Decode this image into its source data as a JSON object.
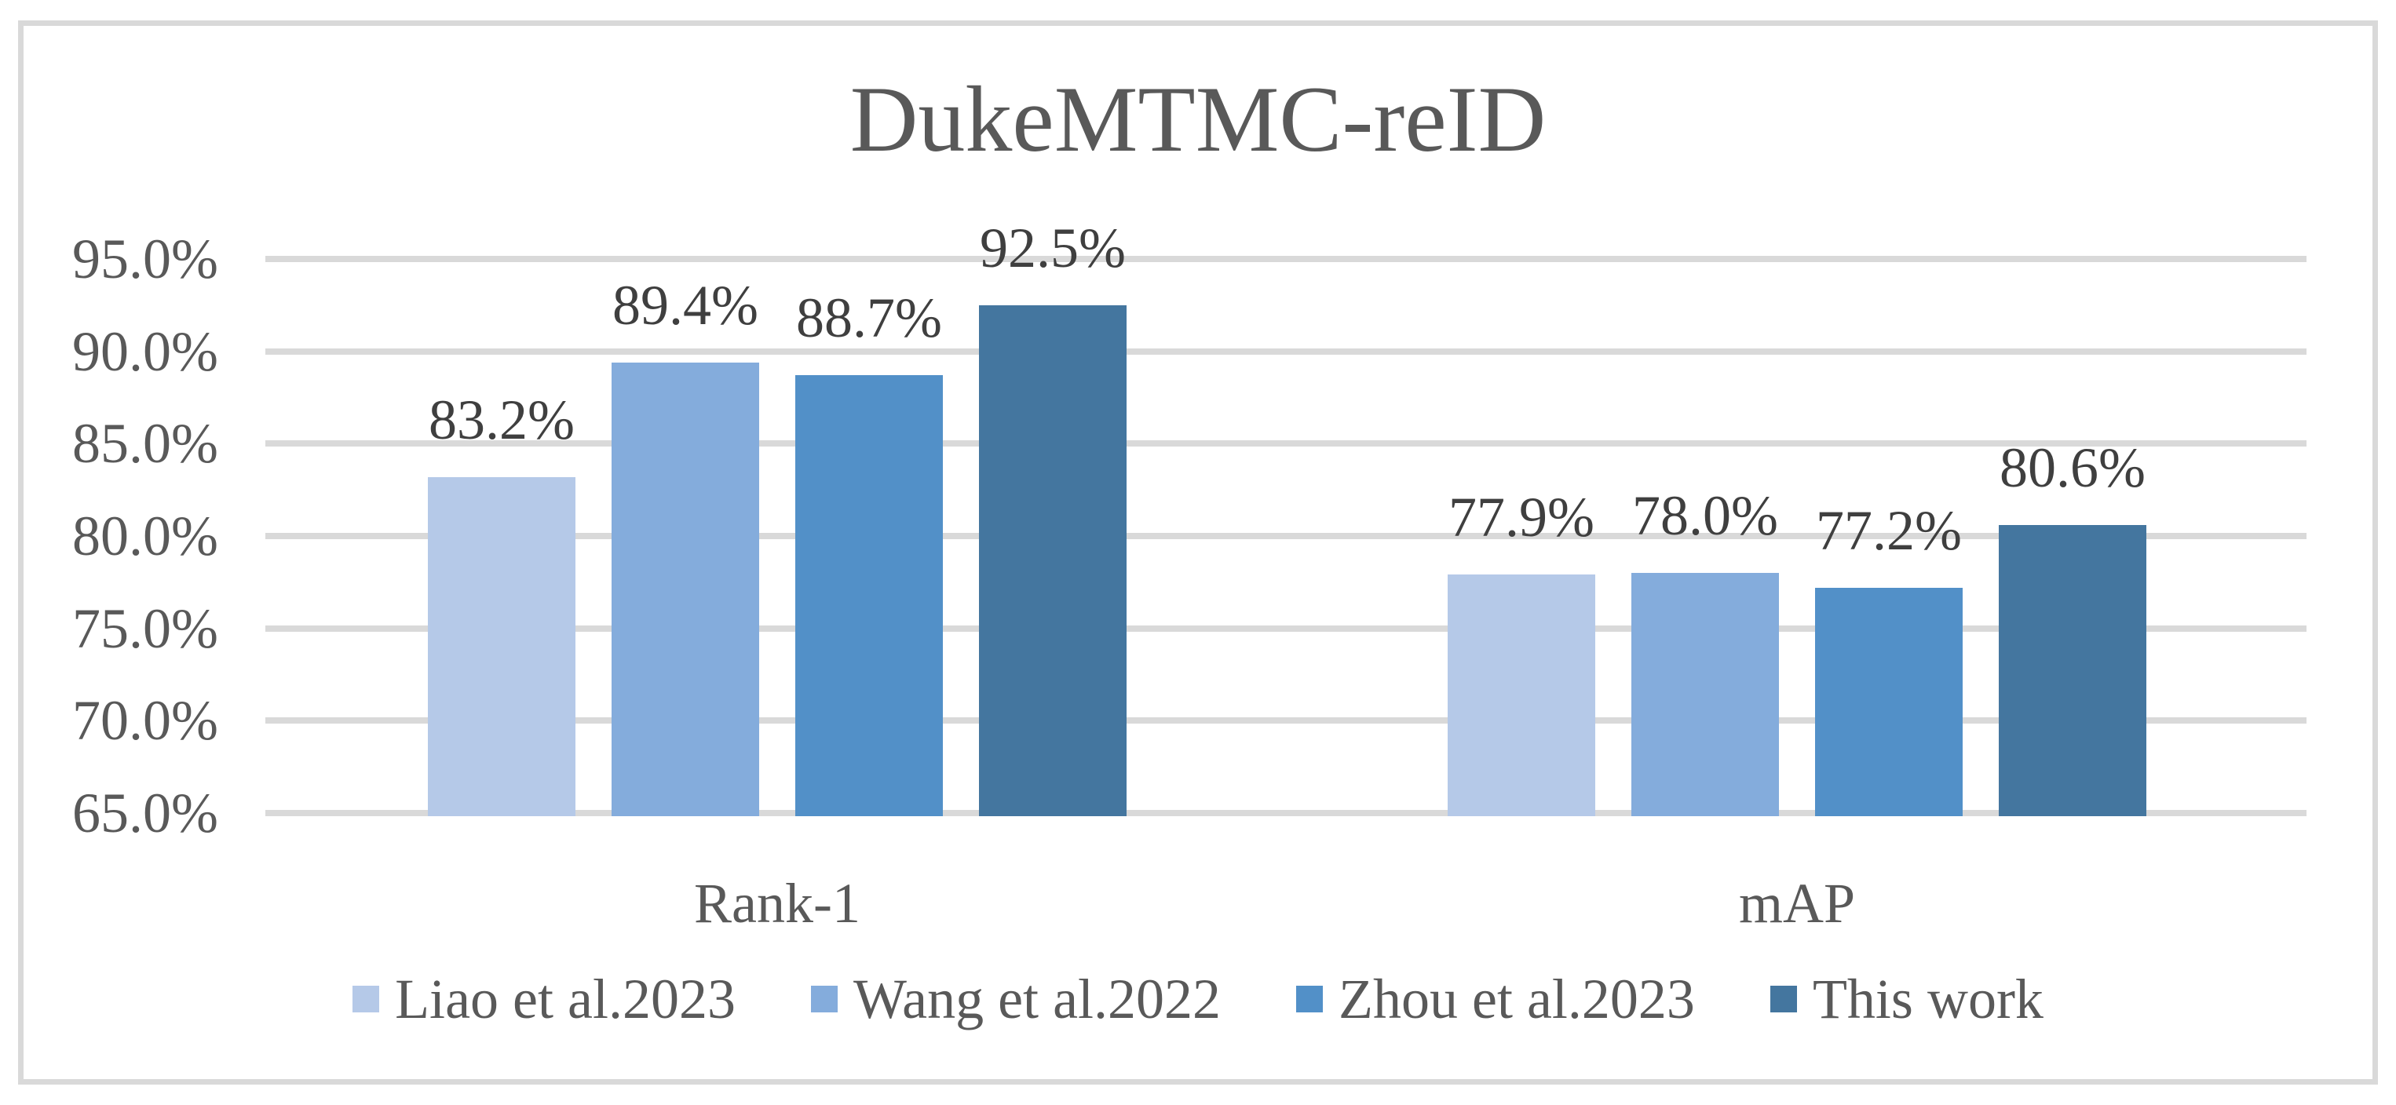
{
  "chart_data": {
    "type": "bar",
    "title": "DukeMTMC-reID",
    "categories": [
      "Rank-1",
      "mAP"
    ],
    "series": [
      {
        "name": "Liao et al.2023",
        "color": "#B5C9E8",
        "values": [
          83.2,
          77.9
        ]
      },
      {
        "name": "Wang et al.2022",
        "color": "#84ACDC",
        "values": [
          89.4,
          78.0
        ]
      },
      {
        "name": "Zhou et al.2023",
        "color": "#5290C8",
        "values": [
          88.7,
          77.2
        ]
      },
      {
        "name": "This work",
        "color": "#44769F",
        "values": [
          92.5,
          80.6
        ]
      }
    ],
    "data_labels": [
      [
        "83.2%",
        "89.4%",
        "88.7%",
        "92.5%"
      ],
      [
        "77.9%",
        "78.0%",
        "77.2%",
        "80.6%"
      ]
    ],
    "y_axis": {
      "min": 65,
      "max": 95,
      "step": 5,
      "tick_labels": [
        "95.0%",
        "90.0%",
        "85.0%",
        "80.0%",
        "75.0%",
        "70.0%",
        "65.0%"
      ]
    },
    "grid": true,
    "legend_position": "bottom",
    "colors": {
      "frame_border": "#D9D9D9",
      "gridline": "#D9D9D9",
      "axis_text": "#595959",
      "title_text": "#595959",
      "data_label_text": "#3F3F3F",
      "background": "#FFFFFF"
    }
  }
}
